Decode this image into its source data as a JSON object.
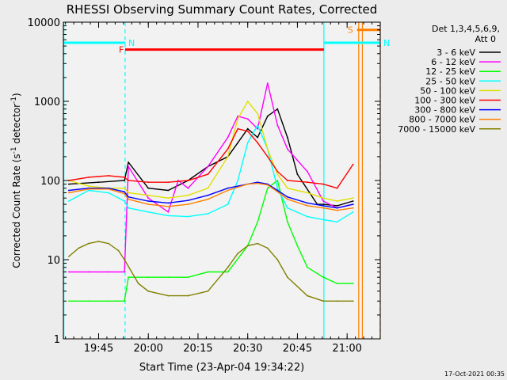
{
  "chart_data": {
    "type": "line",
    "title": "RHESSI Observing Summary Count Rates, Corrected",
    "xlabel": "Start Time (23-Apr-04 19:34:22)",
    "ylabel_main": "Corrected Count Rate (s",
    "ylabel_sup1": "-1",
    "ylabel_mid": " detector",
    "ylabel_sup2": "-1",
    "ylabel_end": ")",
    "yscale": "log",
    "ylim": [
      1,
      10000
    ],
    "xlim": [
      19.5727,
      21.1667
    ],
    "y_ticks": [
      {
        "v": 1,
        "label": "1"
      },
      {
        "v": 10,
        "label": "10"
      },
      {
        "v": 100,
        "label": "100"
      },
      {
        "v": 1000,
        "label": "1000"
      },
      {
        "v": 10000,
        "label": "10000"
      }
    ],
    "x_ticks": [
      {
        "v": 19.75,
        "label": "19:45"
      },
      {
        "v": 20.0,
        "label": "20:00"
      },
      {
        "v": 20.25,
        "label": "20:15"
      },
      {
        "v": 20.5,
        "label": "20:30"
      },
      {
        "v": 20.75,
        "label": "20:45"
      },
      {
        "v": 21.0,
        "label": "21:00"
      }
    ],
    "legend_header_1": "Det 1,3,4,5,6,9,",
    "legend_header_2": "Att 0",
    "footer_timestamp": "17-Oct-2021 00:35",
    "flags": [
      {
        "label": "N",
        "color": "#00ffff",
        "x0": 19.5727,
        "x1": 19.8833,
        "y": 5500
      },
      {
        "label": "N",
        "color": "#00ffff",
        "x0": 20.8833,
        "x1": 21.1667,
        "y": 5500
      },
      {
        "label": "F",
        "color": "#ff0000",
        "x0": 19.8833,
        "x1": 20.8833,
        "y": 4500
      },
      {
        "label": "S",
        "color": "#ff8000",
        "x0": 21.05,
        "x1": 21.1667,
        "y": 8000
      }
    ],
    "vlines": [
      {
        "x": 19.575,
        "color": "#00ffff",
        "dashed": false
      },
      {
        "x": 19.8833,
        "color": "#00ffff",
        "dashed": true
      },
      {
        "x": 20.8833,
        "color": "#00ffff",
        "dashed": false
      },
      {
        "x": 21.0583,
        "color": "#ff8000",
        "dashed": false
      },
      {
        "x": 21.0767,
        "color": "#ff8000",
        "dashed": false
      },
      {
        "x": 21.1667,
        "color": "#ff8000",
        "dashed": true
      }
    ],
    "series": [
      {
        "name": "3 - 6 keV",
        "color": "#000000",
        "x": [
          19.6,
          19.75,
          19.88,
          19.9,
          20.0,
          20.1,
          20.2,
          20.3,
          20.4,
          20.45,
          20.5,
          20.55,
          20.6,
          20.65,
          20.7,
          20.75,
          20.85,
          20.88,
          20.95,
          21.03
        ],
        "values": [
          90,
          95,
          100,
          170,
          80,
          75,
          100,
          150,
          200,
          300,
          450,
          350,
          650,
          800,
          350,
          120,
          50,
          50,
          48,
          55
        ]
      },
      {
        "name": "6 - 12 keV",
        "color": "#ff00ff",
        "x": [
          19.6,
          19.7,
          19.8,
          19.88,
          19.9,
          20.0,
          20.1,
          20.15,
          20.2,
          20.3,
          20.4,
          20.45,
          20.5,
          20.55,
          20.6,
          20.65,
          20.7,
          20.75,
          20.8,
          20.88,
          20.95,
          21.03
        ],
        "values": [
          7,
          7,
          7,
          7,
          150,
          60,
          40,
          100,
          80,
          150,
          350,
          650,
          600,
          450,
          1700,
          500,
          250,
          180,
          130,
          55,
          45,
          50
        ]
      },
      {
        "name": "12 - 25 keV",
        "color": "#00ff00",
        "x": [
          19.6,
          19.7,
          19.8,
          19.88,
          19.9,
          20.0,
          20.1,
          20.2,
          20.3,
          20.4,
          20.5,
          20.55,
          20.6,
          20.65,
          20.7,
          20.75,
          20.8,
          20.88,
          20.95,
          21.03
        ],
        "values": [
          3,
          3,
          3,
          3,
          6,
          6,
          6,
          6,
          7,
          7,
          15,
          30,
          80,
          100,
          30,
          15,
          8,
          6,
          5,
          5
        ]
      },
      {
        "name": "25 - 50 keV",
        "color": "#00ffff",
        "x": [
          19.6,
          19.7,
          19.8,
          19.88,
          19.9,
          20.0,
          20.1,
          20.2,
          20.3,
          20.4,
          20.45,
          20.5,
          20.55,
          20.6,
          20.65,
          20.7,
          20.8,
          20.88,
          20.95,
          21.03
        ],
        "values": [
          55,
          75,
          70,
          55,
          45,
          40,
          36,
          35,
          38,
          50,
          100,
          300,
          500,
          250,
          80,
          45,
          35,
          32,
          30,
          40
        ]
      },
      {
        "name": "50 - 100 keV",
        "color": "#e0e000",
        "x": [
          19.6,
          19.7,
          19.8,
          19.88,
          19.9,
          20.0,
          20.1,
          20.2,
          20.3,
          20.4,
          20.45,
          20.5,
          20.55,
          20.6,
          20.65,
          20.7,
          20.8,
          20.88,
          20.95,
          21.03
        ],
        "values": [
          100,
          85,
          80,
          80,
          70,
          65,
          60,
          65,
          80,
          200,
          600,
          1000,
          700,
          250,
          120,
          80,
          70,
          60,
          55,
          60
        ]
      },
      {
        "name": "100 - 300 keV",
        "color": "#ff0000",
        "x": [
          19.6,
          19.7,
          19.8,
          19.88,
          19.9,
          20.0,
          20.1,
          20.2,
          20.3,
          20.4,
          20.45,
          20.5,
          20.55,
          20.6,
          20.65,
          20.7,
          20.8,
          20.88,
          20.95,
          21.03
        ],
        "values": [
          100,
          110,
          115,
          110,
          100,
          95,
          95,
          100,
          120,
          250,
          450,
          420,
          300,
          200,
          130,
          100,
          95,
          90,
          80,
          160
        ]
      },
      {
        "name": "300 - 800 keV",
        "color": "#0000ff",
        "x": [
          19.6,
          19.7,
          19.8,
          19.88,
          19.9,
          20.0,
          20.1,
          20.2,
          20.3,
          20.4,
          20.5,
          20.55,
          20.6,
          20.65,
          20.7,
          20.8,
          20.88,
          20.95,
          21.03
        ],
        "values": [
          75,
          80,
          80,
          72,
          62,
          55,
          52,
          56,
          65,
          80,
          90,
          95,
          90,
          75,
          62,
          52,
          48,
          45,
          50
        ]
      },
      {
        "name": "800 - 7000 keV",
        "color": "#ff8000",
        "x": [
          19.6,
          19.7,
          19.8,
          19.88,
          19.9,
          20.0,
          20.1,
          20.2,
          20.3,
          20.4,
          20.5,
          20.55,
          20.6,
          20.65,
          20.7,
          20.8,
          20.88,
          20.95,
          21.03
        ],
        "values": [
          70,
          78,
          78,
          68,
          58,
          50,
          47,
          50,
          58,
          75,
          90,
          92,
          88,
          72,
          58,
          48,
          45,
          42,
          45
        ]
      },
      {
        "name": "7000 - 15000 keV",
        "color": "#808000",
        "x": [
          19.6,
          19.65,
          19.7,
          19.75,
          19.8,
          19.85,
          19.88,
          19.95,
          20.0,
          20.1,
          20.2,
          20.3,
          20.4,
          20.45,
          20.5,
          20.55,
          20.6,
          20.65,
          20.7,
          20.8,
          20.88,
          20.95,
          21.03
        ],
        "values": [
          11,
          14,
          16,
          17,
          16,
          13,
          10,
          5,
          4,
          3.5,
          3.5,
          4,
          8,
          12,
          15,
          16,
          14,
          10,
          6,
          3.5,
          3,
          3,
          3
        ]
      }
    ]
  }
}
